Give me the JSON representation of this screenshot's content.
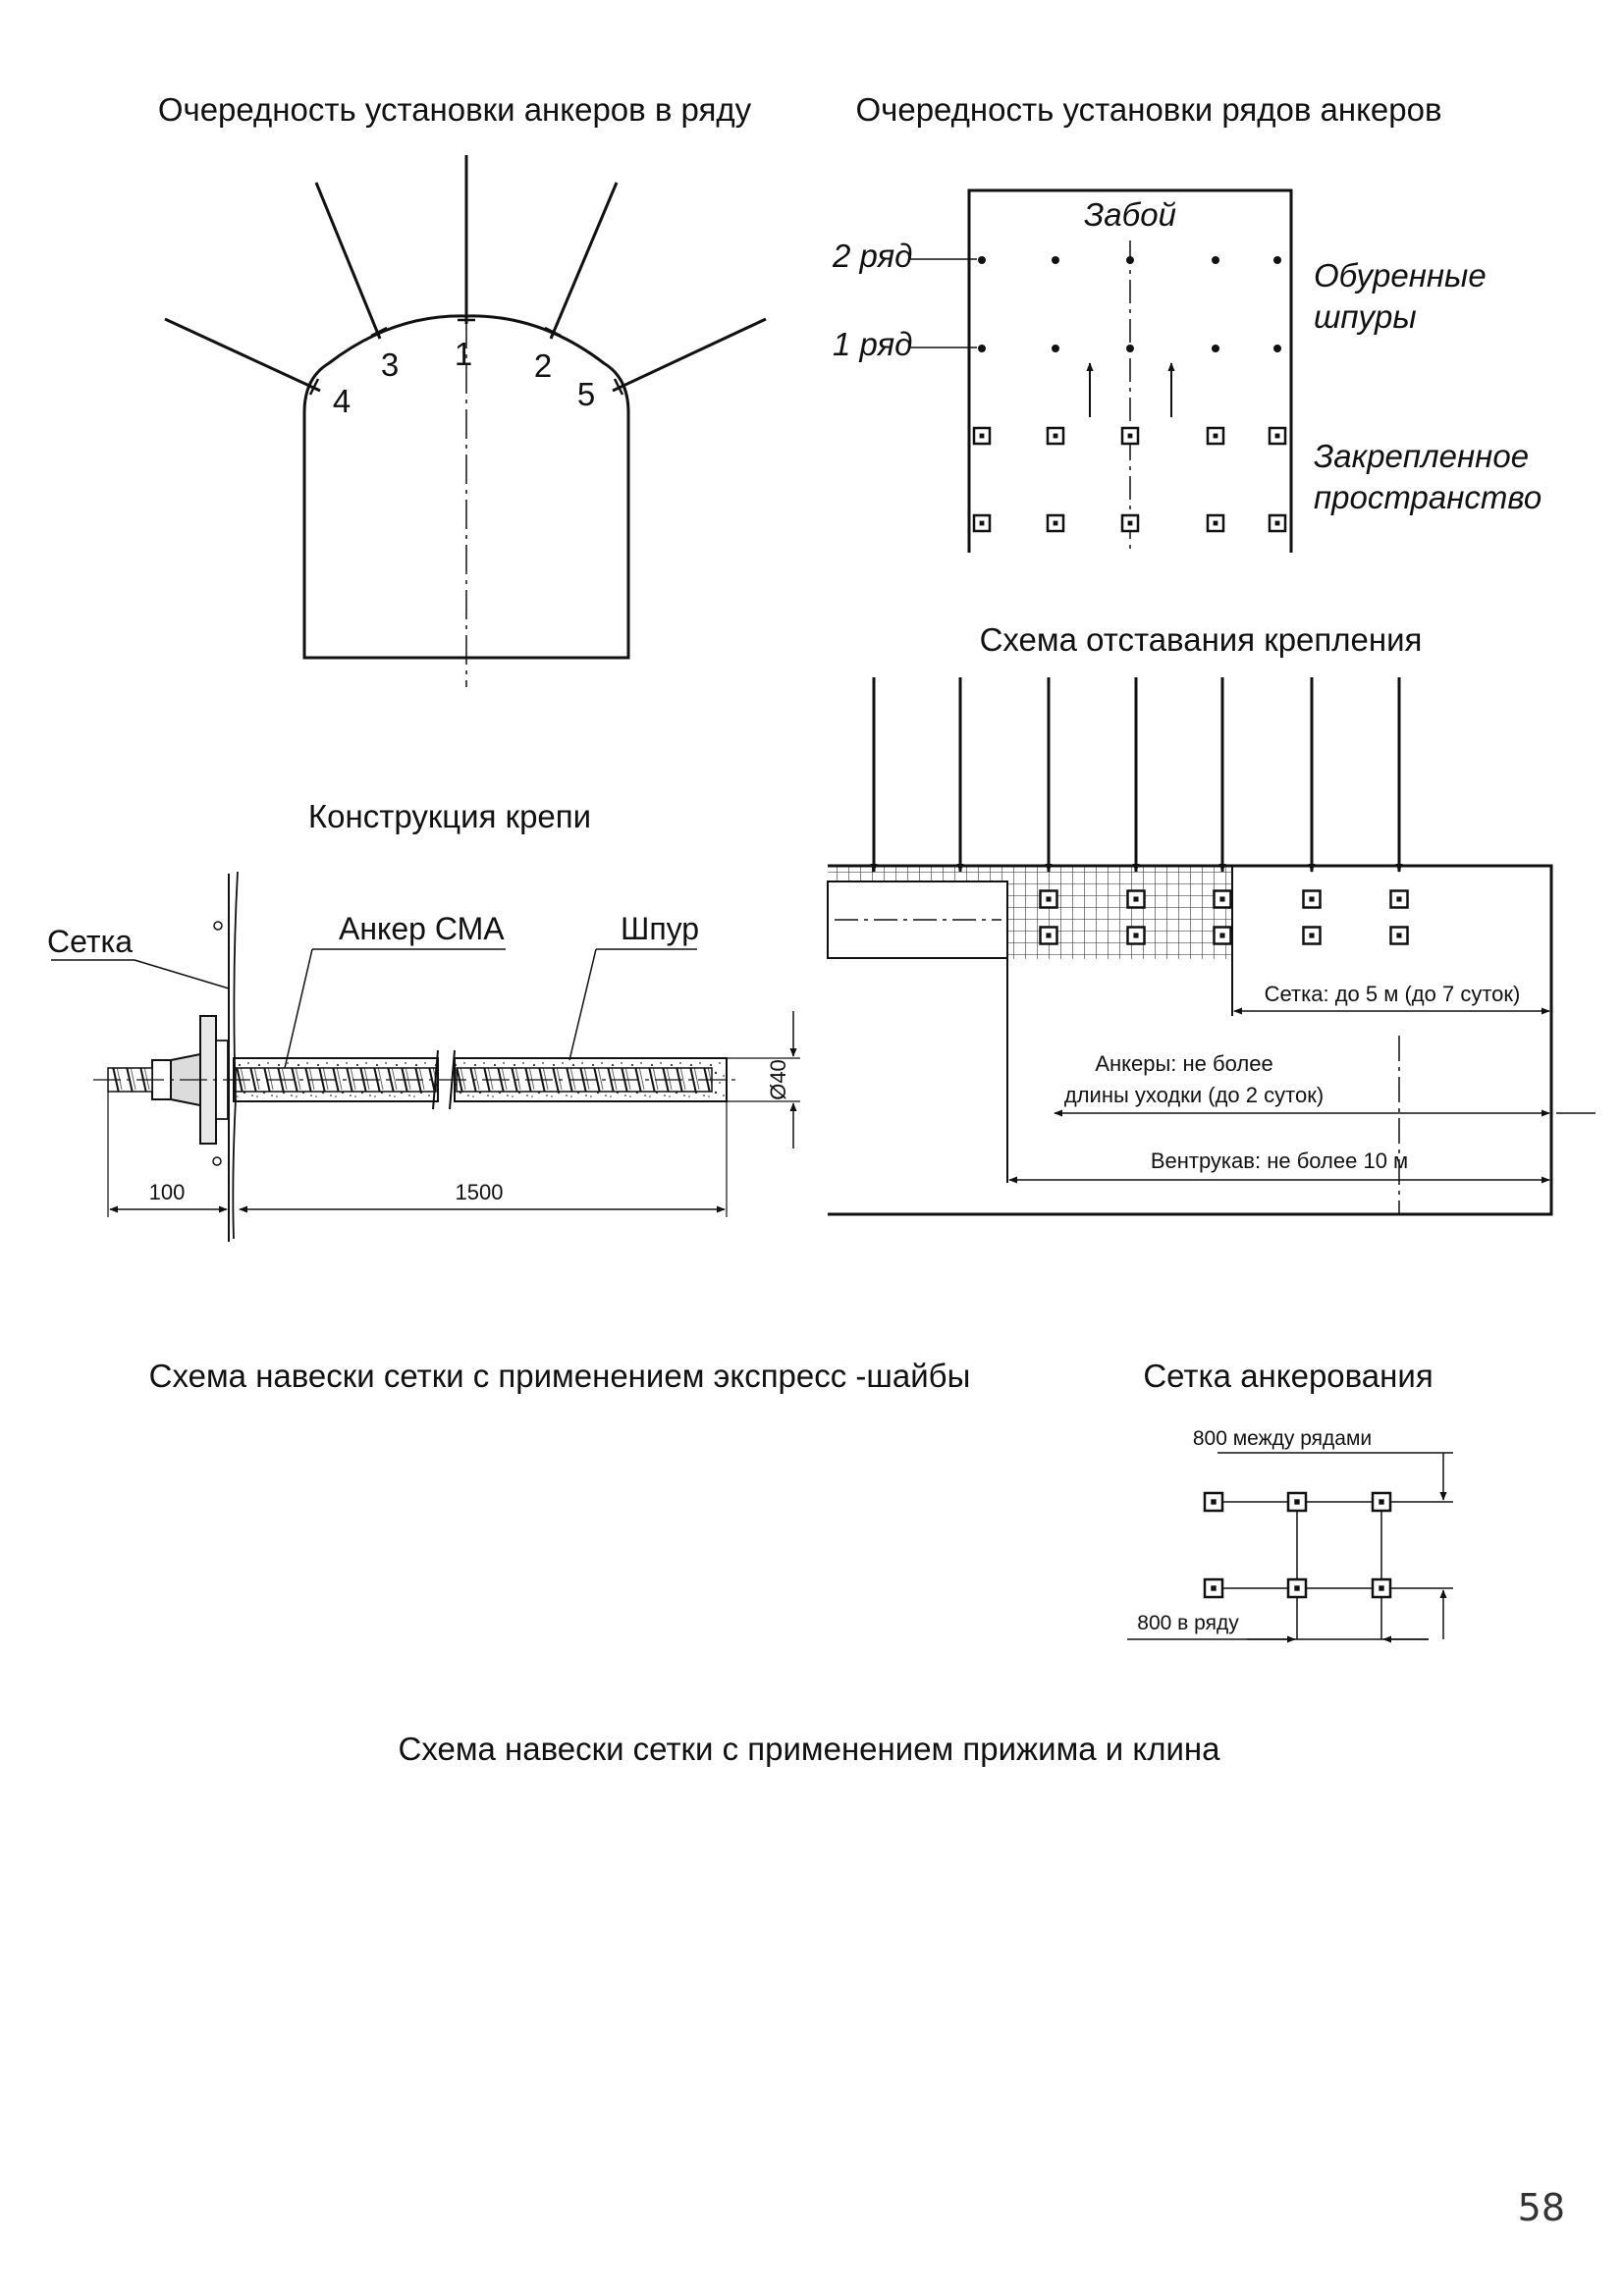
{
  "titles": {
    "row_order": "Очередность установки анкеров в ряду",
    "rows_order": "Очередность установки рядов анкеров",
    "lag_scheme": "Схема отставания крепления",
    "support_design": "Конструкция крепи",
    "mesh_express_washer": "Схема навески сетки с применением экспресс -шайбы",
    "anchoring_grid": "Сетка анкерования",
    "mesh_clamp_wedge": "Схема навески сетки с применением прижима и клина"
  },
  "arch": {
    "anchor_numbers": [
      "1",
      "2",
      "3",
      "4",
      "5"
    ]
  },
  "rows": {
    "face": "Забой",
    "row2": "2 ряд",
    "row1": "1 ряд",
    "drilled_holes": [
      "Обуренные",
      "шпуры"
    ],
    "secured_space": [
      "Закрепленное",
      "пространство"
    ]
  },
  "lag": {
    "mesh_lag": "Сетка: до 5 м (до 7 суток)",
    "anchors_lag": [
      "Анкеры: не более",
      "длины уходки  (до 2 суток)"
    ],
    "duct_lag": "Вентрукав: не более  10 м"
  },
  "support": {
    "mesh": "Сетка",
    "anchor": "Анкер СМА",
    "hole": "Шпур",
    "diameter": "Ø40",
    "dim_100": "100",
    "dim_1500": "1500"
  },
  "grid": {
    "between_rows": "800 между рядами",
    "in_row": "800 в ряду"
  },
  "page_number": "58"
}
